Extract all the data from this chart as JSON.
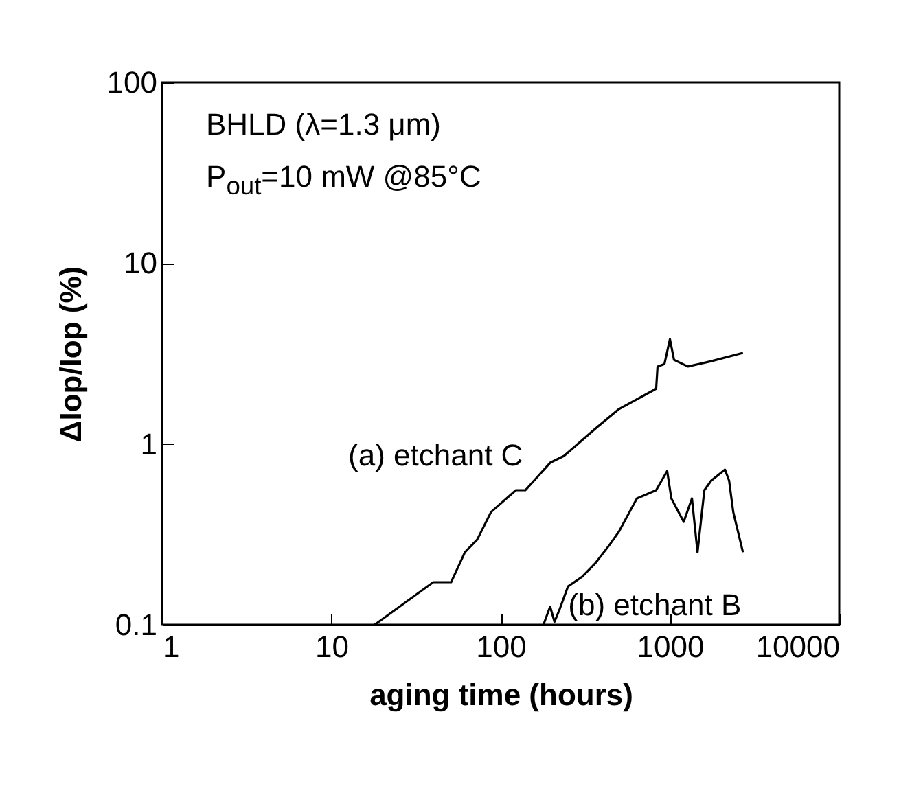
{
  "chart_data": {
    "type": "line",
    "xlabel": "aging time (hours)",
    "ylabel": "ΔIop/Iop (%)",
    "log": "xy",
    "xlim": [
      1,
      10000
    ],
    "xticks": [
      1,
      10,
      100,
      1000,
      10000
    ],
    "ylim": [
      0.1,
      100
    ],
    "yticks": [
      0.1,
      1,
      10,
      100
    ],
    "grid": false,
    "legend": false,
    "marker": "none",
    "line_style": "solid",
    "annotations": [
      "BHLD (λ=1.3 μm)",
      "P$_{out}$=10 mW @85°C"
    ],
    "series": [
      {
        "name": "(a) etchant C",
        "color": "#000000",
        "x": [
          18,
          40,
          51,
          61.5,
          72.7,
          87.7,
          123,
          140,
          196,
          237,
          364,
          500,
          829,
          845,
          928,
          1000,
          1057,
          1276,
          1754,
          2699
        ],
        "values": [
          0.1,
          0.172,
          0.172,
          0.252,
          0.296,
          0.42,
          0.555,
          0.555,
          0.787,
          0.859,
          1.22,
          1.56,
          2.02,
          2.68,
          2.77,
          3.8,
          2.92,
          2.68,
          2.87,
          3.19
        ]
      },
      {
        "name": "(b) etchant B",
        "color": "#000000",
        "x": [
          179,
          196,
          208,
          224,
          250,
          302,
          364,
          439,
          500,
          638,
          829,
          963,
          1019,
          1206,
          1349,
          1455,
          1597,
          1754,
          2114,
          2236,
          2366,
          2699
        ],
        "values": [
          0.1,
          0.126,
          0.104,
          0.123,
          0.163,
          0.184,
          0.22,
          0.276,
          0.328,
          0.5,
          0.555,
          0.709,
          0.5,
          0.371,
          0.5,
          0.252,
          0.555,
          0.627,
          0.721,
          0.627,
          0.42,
          0.252
        ]
      }
    ]
  }
}
